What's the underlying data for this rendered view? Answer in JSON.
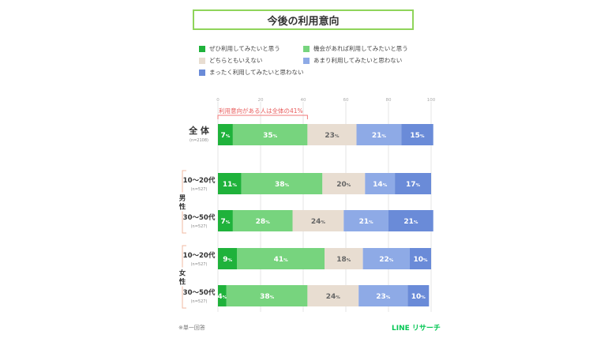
{
  "title": "今後の利用意向",
  "legend": [
    {
      "label": "ぜひ利用してみたいと思う",
      "color": "#1fb23b"
    },
    {
      "label": "機会があれば利用してみたいと思う",
      "color": "#77d47e"
    },
    {
      "label": "どちらともいえない",
      "color": "#e8ddd1"
    },
    {
      "label": "あまり利用してみたいと思わない",
      "color": "#8eaae6"
    },
    {
      "label": "まったく利用してみたいと思わない",
      "color": "#6a8bd8"
    }
  ],
  "bracket_note": "利用意向がある人は全体の41%",
  "footnote": "※単一回答",
  "brand": "LINE リサーチ",
  "chart_data": {
    "type": "bar",
    "orientation": "horizontal",
    "stacked": true,
    "xlim": [
      0,
      100
    ],
    "xticks": [
      "0",
      "20",
      "40",
      "60",
      "80",
      "100"
    ],
    "percent_suffix": "%",
    "groups": [
      {
        "label": "男性",
        "rows": [
          1,
          2
        ]
      },
      {
        "label": "女性",
        "rows": [
          3,
          4
        ]
      }
    ],
    "rows": [
      {
        "label": "全 体",
        "n": "(n=2108)",
        "values": [
          7,
          35,
          23,
          21,
          15
        ]
      },
      {
        "label": "10～20代",
        "n": "(n=527)",
        "values": [
          11,
          38,
          20,
          14,
          17
        ]
      },
      {
        "label": "30～50代",
        "n": "(n=527)",
        "values": [
          7,
          28,
          24,
          21,
          21
        ]
      },
      {
        "label": "10～20代",
        "n": "(n=527)",
        "values": [
          9,
          41,
          18,
          22,
          10
        ]
      },
      {
        "label": "30～50代",
        "n": "(n=527)",
        "values": [
          4,
          38,
          24,
          23,
          10
        ]
      }
    ]
  }
}
